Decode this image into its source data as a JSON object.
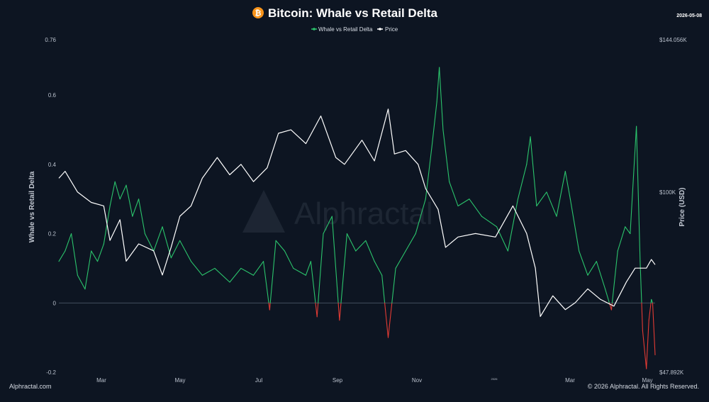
{
  "header": {
    "title": "Bitcoin: Whale vs Retail Delta",
    "date": "2026-05-08",
    "logo_icon": "bitcoin-icon"
  },
  "footer": {
    "source": "Alphractal.com",
    "copyright": "© 2026 Alphractal. All Rights Reserved."
  },
  "watermark": "Alphractal",
  "colors": {
    "background": "#0d1522",
    "positive": "#2bc46c",
    "negative": "#e23b34",
    "price": "#ffffff",
    "axis_text": "#b9c0cc",
    "zero_line": "#4a5668",
    "bitcoin": "#f7931a"
  },
  "chart_data": {
    "type": "line",
    "title": "Bitcoin: Whale vs Retail Delta",
    "legend": {
      "placement": "top-center",
      "entries": [
        "Whale vs Retail Delta",
        "Price"
      ]
    },
    "grid": false,
    "x_axis": {
      "ticks": [
        "Mar",
        "May",
        "Jul",
        "Sep",
        "Nov",
        "2026",
        "Mar",
        "May"
      ],
      "range": [
        "2025-01-15",
        "2026-05-08"
      ]
    },
    "y_left": {
      "label": "Whale vs Retail Delta",
      "range": [
        -0.2,
        0.76
      ],
      "ticks": [
        0.76,
        0.6,
        0.4,
        0.2,
        0,
        -0.2
      ]
    },
    "y_right": {
      "label": "Price (USD)",
      "range": [
        47892,
        144056
      ],
      "ticks": [
        "$144.056K",
        "$100K",
        "$47.892K"
      ]
    },
    "series": [
      {
        "name": "Whale vs Retail Delta",
        "axis": "left",
        "points": [
          [
            "2025-01-15",
            0.12
          ],
          [
            "2025-01-20",
            0.15
          ],
          [
            "2025-01-25",
            0.2
          ],
          [
            "2025-01-30",
            0.08
          ],
          [
            "2025-02-05",
            0.04
          ],
          [
            "2025-02-10",
            0.15
          ],
          [
            "2025-02-15",
            0.12
          ],
          [
            "2025-02-20",
            0.17
          ],
          [
            "2025-02-25",
            0.28
          ],
          [
            "2025-03-01",
            0.35
          ],
          [
            "2025-03-05",
            0.3
          ],
          [
            "2025-03-10",
            0.34
          ],
          [
            "2025-03-15",
            0.25
          ],
          [
            "2025-03-20",
            0.3
          ],
          [
            "2025-03-25",
            0.2
          ],
          [
            "2025-04-01",
            0.15
          ],
          [
            "2025-04-08",
            0.22
          ],
          [
            "2025-04-15",
            0.13
          ],
          [
            "2025-04-22",
            0.18
          ],
          [
            "2025-05-01",
            0.12
          ],
          [
            "2025-05-10",
            0.08
          ],
          [
            "2025-05-20",
            0.1
          ],
          [
            "2025-06-01",
            0.06
          ],
          [
            "2025-06-10",
            0.1
          ],
          [
            "2025-06-20",
            0.08
          ],
          [
            "2025-06-28",
            0.12
          ],
          [
            "2025-07-03",
            -0.02
          ],
          [
            "2025-07-08",
            0.18
          ],
          [
            "2025-07-15",
            0.15
          ],
          [
            "2025-07-22",
            0.1
          ],
          [
            "2025-08-01",
            0.08
          ],
          [
            "2025-08-05",
            0.12
          ],
          [
            "2025-08-10",
            -0.04
          ],
          [
            "2025-08-15",
            0.2
          ],
          [
            "2025-08-22",
            0.25
          ],
          [
            "2025-08-28",
            -0.05
          ],
          [
            "2025-09-03",
            0.2
          ],
          [
            "2025-09-10",
            0.15
          ],
          [
            "2025-09-18",
            0.18
          ],
          [
            "2025-09-25",
            0.12
          ],
          [
            "2025-10-01",
            0.08
          ],
          [
            "2025-10-06",
            -0.1
          ],
          [
            "2025-10-12",
            0.1
          ],
          [
            "2025-10-20",
            0.15
          ],
          [
            "2025-10-28",
            0.2
          ],
          [
            "2025-11-05",
            0.3
          ],
          [
            "2025-11-10",
            0.45
          ],
          [
            "2025-11-14",
            0.58
          ],
          [
            "2025-11-16",
            0.68
          ],
          [
            "2025-11-19",
            0.5
          ],
          [
            "2025-11-24",
            0.35
          ],
          [
            "2025-12-01",
            0.28
          ],
          [
            "2025-12-10",
            0.3
          ],
          [
            "2025-12-20",
            0.25
          ],
          [
            "2026-01-01",
            0.22
          ],
          [
            "2026-01-10",
            0.15
          ],
          [
            "2026-01-18",
            0.3
          ],
          [
            "2026-01-25",
            0.4
          ],
          [
            "2026-01-28",
            0.48
          ],
          [
            "2026-02-02",
            0.28
          ],
          [
            "2026-02-10",
            0.32
          ],
          [
            "2026-02-18",
            0.25
          ],
          [
            "2026-02-25",
            0.38
          ],
          [
            "2026-03-01",
            0.3
          ],
          [
            "2026-03-08",
            0.15
          ],
          [
            "2026-03-15",
            0.08
          ],
          [
            "2026-03-22",
            0.12
          ],
          [
            "2026-03-29",
            0.04
          ],
          [
            "2026-04-03",
            -0.02
          ],
          [
            "2026-04-08",
            0.15
          ],
          [
            "2026-04-14",
            0.22
          ],
          [
            "2026-04-18",
            0.2
          ],
          [
            "2026-04-23",
            0.51
          ],
          [
            "2026-04-26",
            0.12
          ],
          [
            "2026-04-28",
            -0.08
          ],
          [
            "2026-05-01",
            -0.19
          ],
          [
            "2026-05-03",
            -0.05
          ],
          [
            "2026-05-05",
            0.01
          ],
          [
            "2026-05-06",
            0.0
          ],
          [
            "2026-05-08",
            -0.15
          ]
        ]
      },
      {
        "name": "Price",
        "axis": "right",
        "points": [
          [
            "2025-01-15",
            104000
          ],
          [
            "2025-01-20",
            106000
          ],
          [
            "2025-01-30",
            100000
          ],
          [
            "2025-02-10",
            97000
          ],
          [
            "2025-02-20",
            96000
          ],
          [
            "2025-02-25",
            86000
          ],
          [
            "2025-03-05",
            92000
          ],
          [
            "2025-03-10",
            80000
          ],
          [
            "2025-03-20",
            85000
          ],
          [
            "2025-04-01",
            83000
          ],
          [
            "2025-04-08",
            76000
          ],
          [
            "2025-04-15",
            84000
          ],
          [
            "2025-04-22",
            93000
          ],
          [
            "2025-05-01",
            96000
          ],
          [
            "2025-05-10",
            104000
          ],
          [
            "2025-05-22",
            110000
          ],
          [
            "2025-06-01",
            105000
          ],
          [
            "2025-06-10",
            108000
          ],
          [
            "2025-06-20",
            103000
          ],
          [
            "2025-07-01",
            107000
          ],
          [
            "2025-07-10",
            117000
          ],
          [
            "2025-07-20",
            118000
          ],
          [
            "2025-08-01",
            114000
          ],
          [
            "2025-08-13",
            122000
          ],
          [
            "2025-08-25",
            110000
          ],
          [
            "2025-09-01",
            108000
          ],
          [
            "2025-09-15",
            115000
          ],
          [
            "2025-09-25",
            109000
          ],
          [
            "2025-10-06",
            124000
          ],
          [
            "2025-10-11",
            111000
          ],
          [
            "2025-10-20",
            112000
          ],
          [
            "2025-10-30",
            108000
          ],
          [
            "2025-11-05",
            101000
          ],
          [
            "2025-11-15",
            95000
          ],
          [
            "2025-11-21",
            84000
          ],
          [
            "2025-12-01",
            87000
          ],
          [
            "2025-12-15",
            88000
          ],
          [
            "2025-12-31",
            87000
          ],
          [
            "2026-01-14",
            96000
          ],
          [
            "2026-01-25",
            88000
          ],
          [
            "2026-02-01",
            78000
          ],
          [
            "2026-02-05",
            64000
          ],
          [
            "2026-02-15",
            70000
          ],
          [
            "2026-02-25",
            66000
          ],
          [
            "2026-03-05",
            68000
          ],
          [
            "2026-03-15",
            72000
          ],
          [
            "2026-03-25",
            69000
          ],
          [
            "2026-04-05",
            67000
          ],
          [
            "2026-04-15",
            74000
          ],
          [
            "2026-04-22",
            78000
          ],
          [
            "2026-05-01",
            78000
          ],
          [
            "2026-05-05",
            80500
          ],
          [
            "2026-05-08",
            79000
          ]
        ]
      }
    ]
  }
}
